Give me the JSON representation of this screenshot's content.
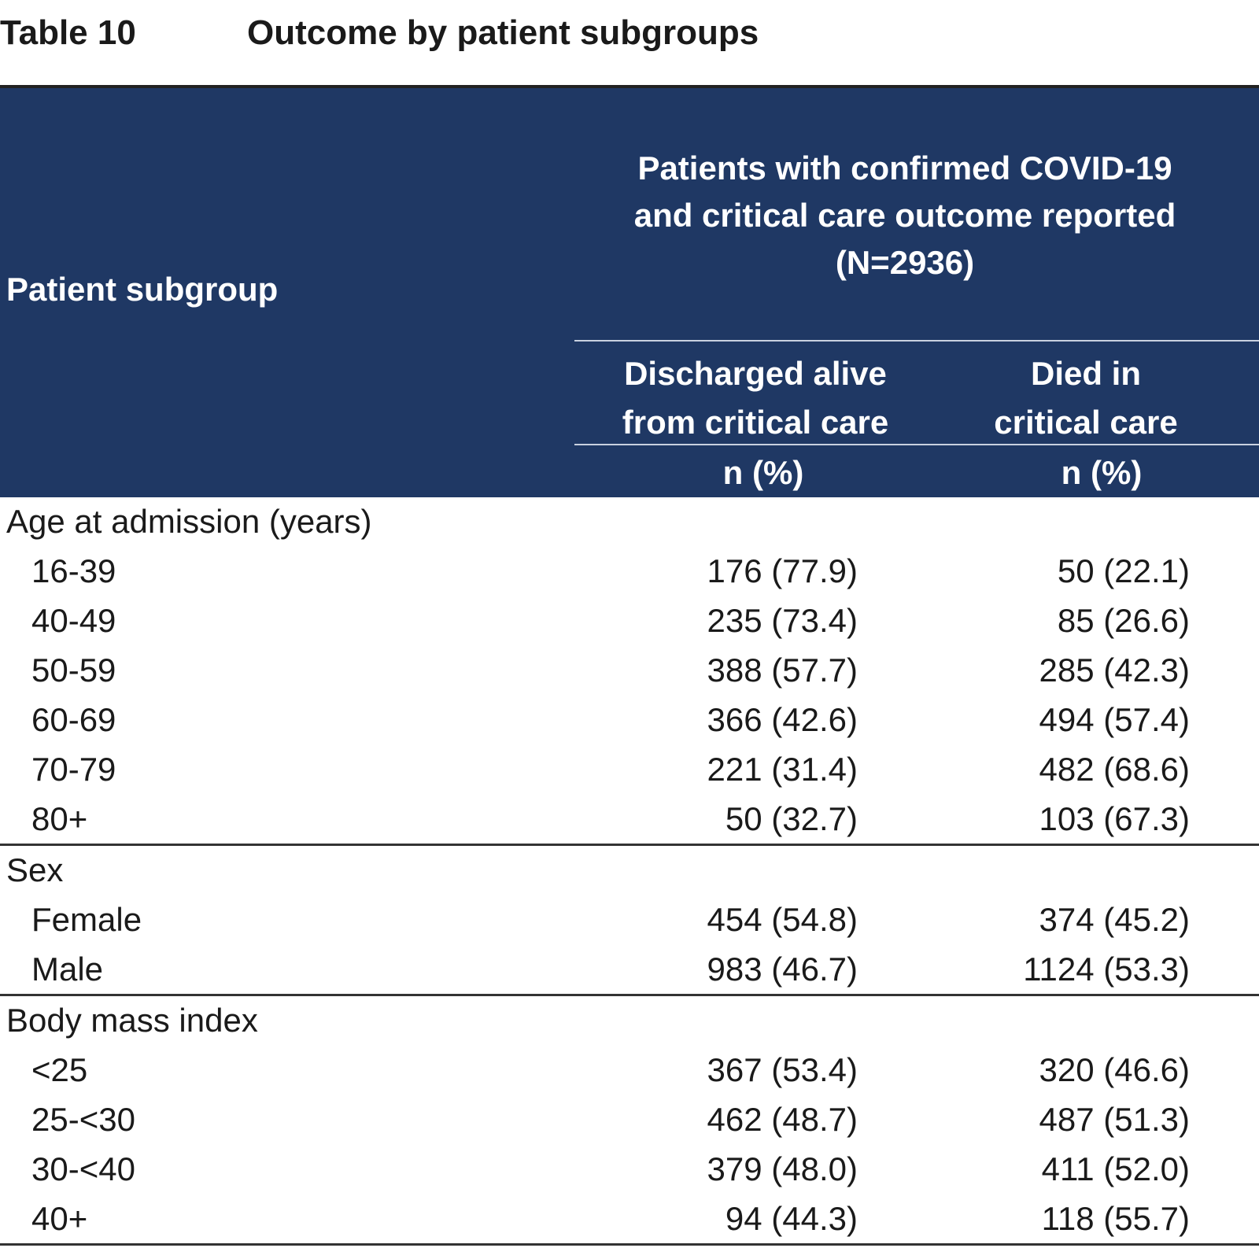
{
  "caption": {
    "label": "Table 10",
    "title": "Outcome by patient subgroups"
  },
  "header": {
    "subgroup_label": "Patient subgroup",
    "span_title_lines": [
      "Patients with confirmed COVID-19",
      "and critical care outcome reported",
      "(N=2936)"
    ],
    "col_a_lines": [
      "Discharged alive",
      "from critical care"
    ],
    "col_b_lines": [
      "Died in",
      "critical care"
    ],
    "unit_a": "n (%)",
    "unit_b": "n (%)"
  },
  "sections": [
    {
      "title": "Age at admission (years)",
      "rows": [
        {
          "label": "16-39",
          "discharged": "176 (77.9)",
          "died": "50 (22.1)"
        },
        {
          "label": "40-49",
          "discharged": "235 (73.4)",
          "died": "85 (26.6)"
        },
        {
          "label": "50-59",
          "discharged": "388 (57.7)",
          "died": "285 (42.3)"
        },
        {
          "label": "60-69",
          "discharged": "366 (42.6)",
          "died": "494 (57.4)"
        },
        {
          "label": "70-79",
          "discharged": "221 (31.4)",
          "died": "482 (68.6)"
        },
        {
          "label": "80+",
          "discharged": "50 (32.7)",
          "died": "103 (67.3)"
        }
      ]
    },
    {
      "title": "Sex",
      "rows": [
        {
          "label": "Female",
          "discharged": "454 (54.8)",
          "died": "374 (45.2)"
        },
        {
          "label": "Male",
          "discharged": "983 (46.7)",
          "died": "1124 (53.3)"
        }
      ]
    },
    {
      "title": "Body mass index",
      "rows": [
        {
          "label": "<25",
          "discharged": "367 (53.4)",
          "died": "320 (46.6)"
        },
        {
          "label": "25-<30",
          "discharged": "462 (48.7)",
          "died": "487 (51.3)"
        },
        {
          "label": "30-<40",
          "discharged": "379 (48.0)",
          "died": "411 (52.0)"
        },
        {
          "label": "40+",
          "discharged": "94 (44.3)",
          "died": "118 (55.7)"
        }
      ]
    }
  ]
}
